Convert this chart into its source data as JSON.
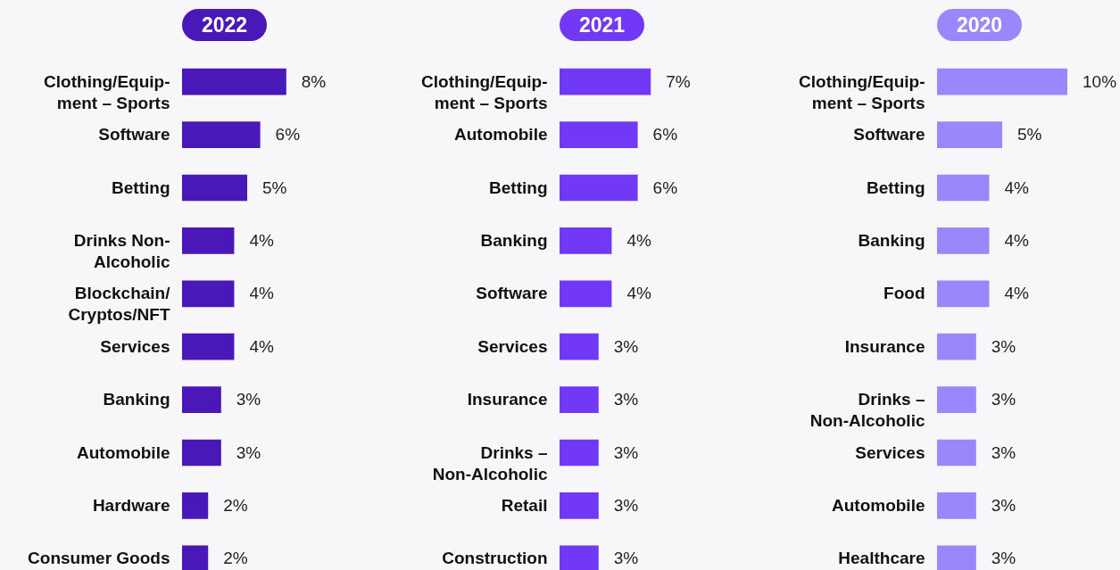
{
  "chart_data": [
    {
      "type": "bar",
      "orientation": "horizontal",
      "title": "2022",
      "color": "#4a17b8",
      "categories": [
        "Clothing/Equip-\nment  – Sports",
        "Software",
        "Betting",
        "Drinks Non-\nAlcoholic",
        "Blockchain/\nCryptos/NFT",
        "Services",
        "Banking",
        "Automobile",
        "Hardware",
        "Consumer Goods"
      ],
      "values": [
        8,
        6,
        5,
        4,
        4,
        4,
        3,
        3,
        2,
        2
      ],
      "value_labels": [
        "8%",
        "6%",
        "5%",
        "4%",
        "4%",
        "4%",
        "3%",
        "3%",
        "2%",
        "2%"
      ]
    },
    {
      "type": "bar",
      "orientation": "horizontal",
      "title": "2021",
      "color": "#7139f6",
      "categories": [
        "Clothing/Equip-\nment – Sports",
        "Automobile",
        "Betting",
        "Banking",
        "Software",
        "Services",
        "Insurance",
        "Drinks –\nNon-Alcoholic",
        "Retail",
        "Construction"
      ],
      "values": [
        7,
        6,
        6,
        4,
        4,
        3,
        3,
        3,
        3,
        3
      ],
      "value_labels": [
        "7%",
        "6%",
        "6%",
        "4%",
        "4%",
        "3%",
        "3%",
        "3%",
        "3%",
        "3%"
      ]
    },
    {
      "type": "bar",
      "orientation": "horizontal",
      "title": "2020",
      "color": "#9b86fb",
      "categories": [
        "Clothing/Equip-\nment – Sports",
        "Software",
        "Betting",
        "Banking",
        "Food",
        "Insurance",
        "Drinks –\nNon-Alcoholic",
        "Services",
        "Automobile",
        "Healthcare"
      ],
      "values": [
        10,
        5,
        4,
        4,
        4,
        3,
        3,
        3,
        3,
        3
      ],
      "value_labels": [
        "10%",
        "5%",
        "4%",
        "4%",
        "4%",
        "3%",
        "3%",
        "3%",
        "3%",
        "3%"
      ]
    }
  ]
}
